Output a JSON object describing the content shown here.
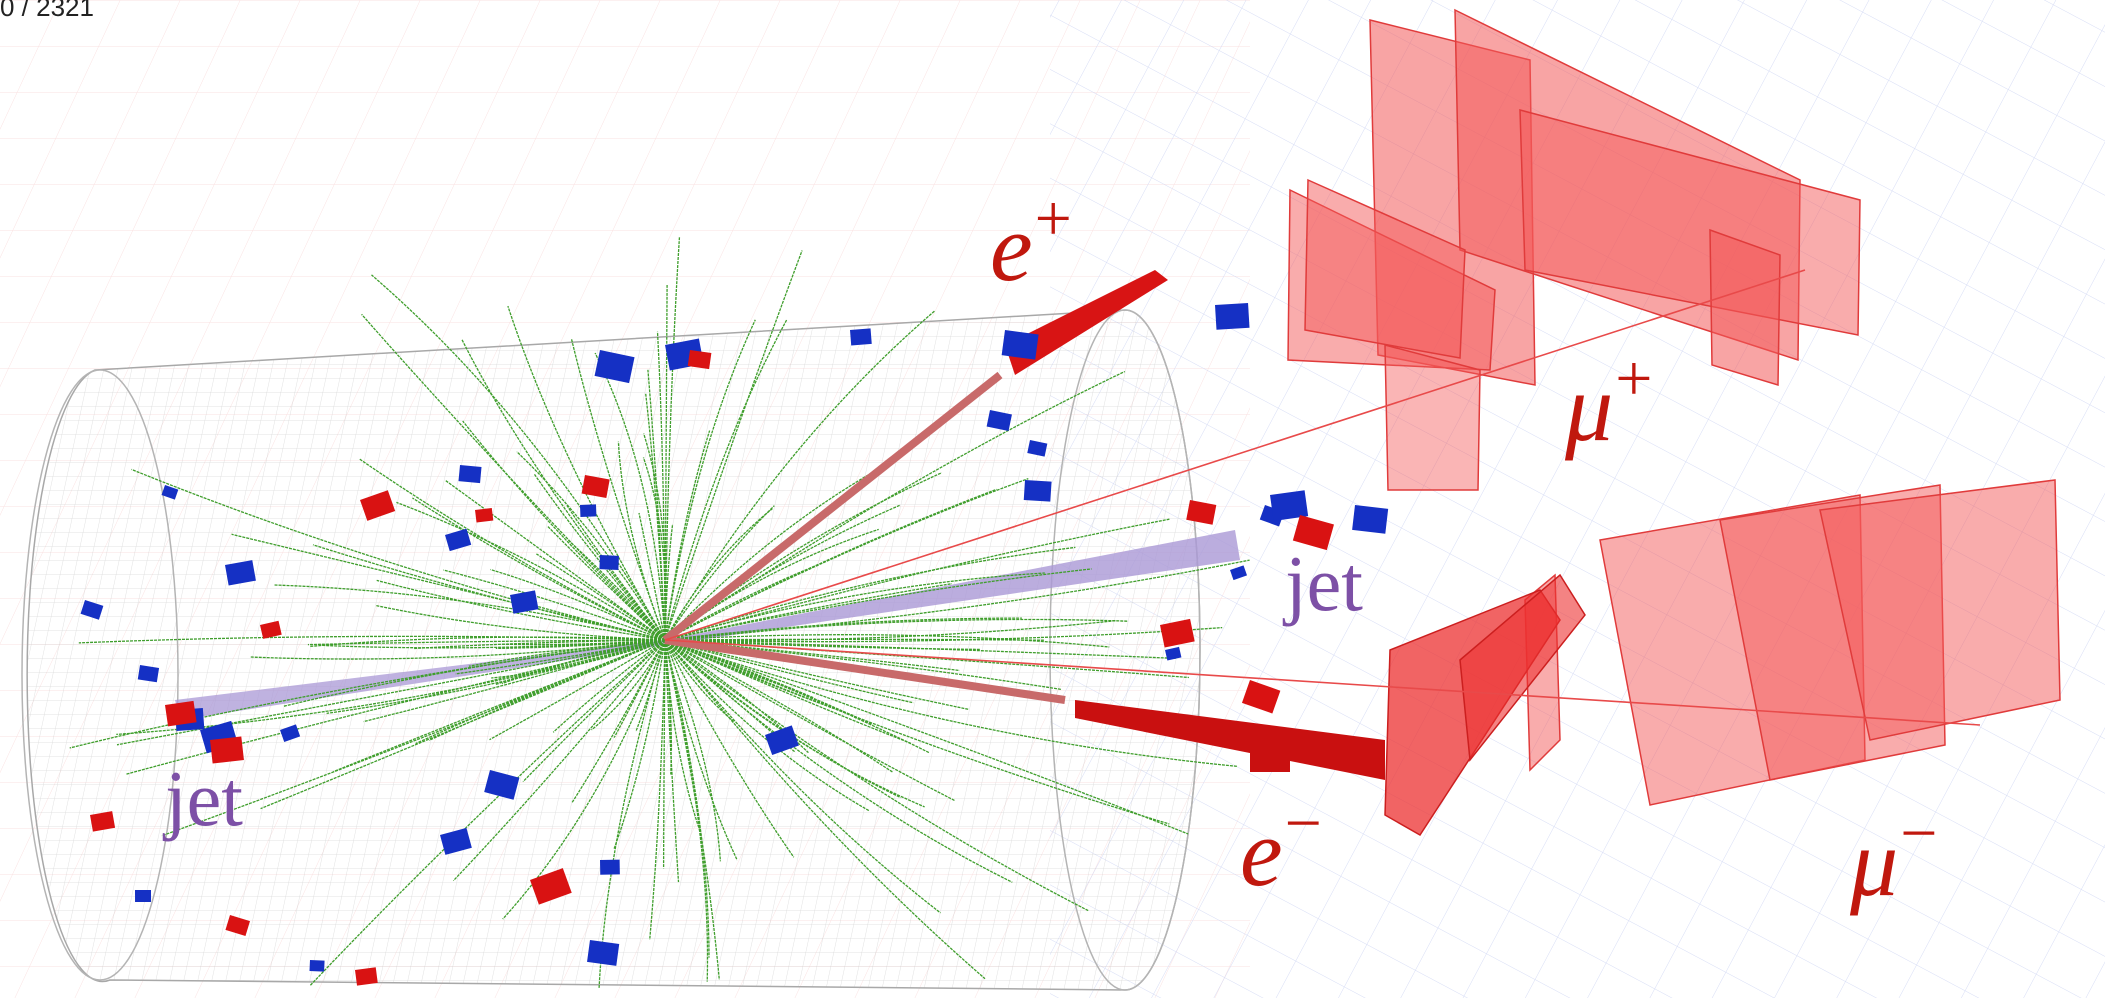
{
  "event_display": {
    "header_text": "0 / 2321",
    "labels": {
      "e_plus": {
        "symbol": "e",
        "sign": "+"
      },
      "e_minus": {
        "symbol": "e",
        "sign": "−"
      },
      "mu_plus": {
        "symbol": "μ",
        "sign": "+"
      },
      "mu_minus": {
        "symbol": "μ",
        "sign": "−"
      },
      "jet_right": "jet",
      "jet_left": "jet"
    },
    "colors": {
      "track_green": "#3f9e2c",
      "hadronic_tower_blue": "#1530c4",
      "em_tower_red": "#d91212",
      "muon_chamber_red": "#f24a4a",
      "jet_cone_purple": "#aa98d6",
      "electron_track": "#c86a6a",
      "label_red": "#c0180e",
      "label_purple": "#7d50a6",
      "detector_mesh": "#b9b9b9"
    }
  }
}
